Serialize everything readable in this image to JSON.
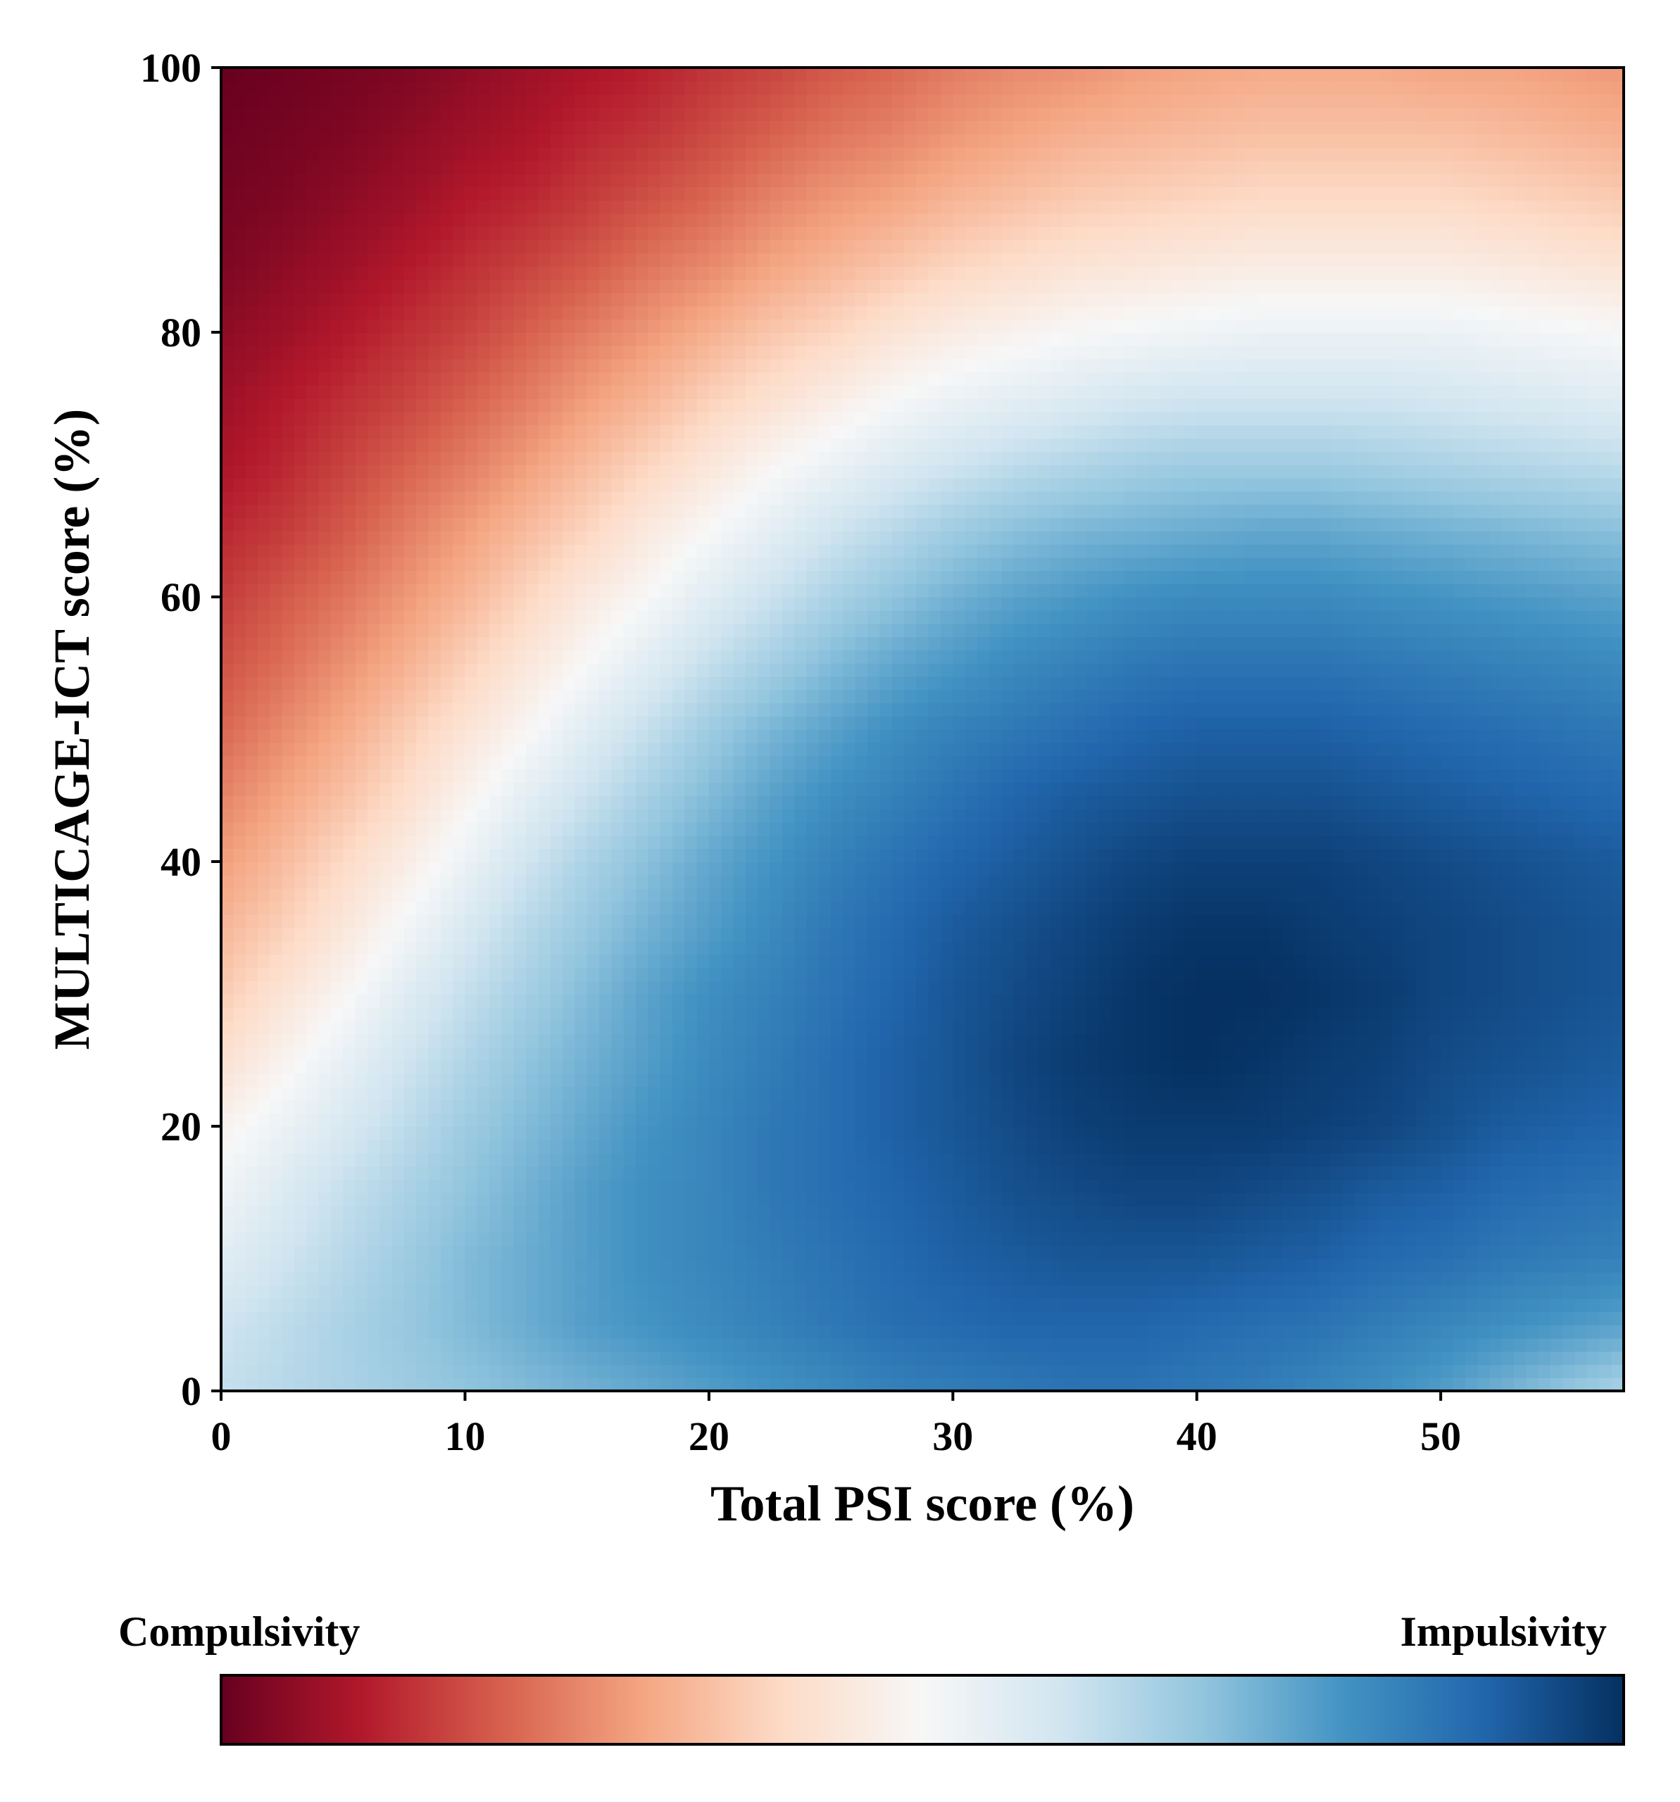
{
  "chart_data": {
    "type": "heatmap",
    "title": "",
    "xlabel": "Total PSI score (%)",
    "ylabel": "MULTICAGE-ICT score (%)",
    "xlim": [
      0,
      57.5
    ],
    "ylim": [
      0,
      100
    ],
    "xticks": [
      0,
      10,
      20,
      30,
      40,
      50
    ],
    "yticks": [
      0,
      20,
      40,
      60,
      80,
      100
    ],
    "colormap": "RdBu",
    "colorbar": {
      "orientation": "horizontal",
      "position": "bottom",
      "label_left": "Compulsivity",
      "label_right": "Impulsivity",
      "stops": [
        "#67001f",
        "#b2182b",
        "#d6604d",
        "#f4a582",
        "#fddbc7",
        "#f7f7f7",
        "#d1e5f0",
        "#92c5de",
        "#4393c3",
        "#2166ac",
        "#053061"
      ]
    },
    "value_range": [
      0,
      1
    ],
    "grid_resolution": [
      24,
      21
    ],
    "x_grid": [
      0,
      2.5,
      5,
      7.5,
      10,
      12.5,
      15,
      17.5,
      20,
      22.5,
      25,
      27.5,
      30,
      32.5,
      35,
      37.5,
      40,
      42.5,
      45,
      47.5,
      50,
      52.5,
      55,
      57.5
    ],
    "y_grid": [
      0,
      5,
      10,
      15,
      20,
      25,
      30,
      35,
      40,
      45,
      50,
      55,
      60,
      65,
      70,
      75,
      80,
      85,
      90,
      95,
      100
    ],
    "values_note": "rows ordered by y_grid (bottom to top); columns by x_grid",
    "values": [
      [
        0.62,
        0.64,
        0.66,
        0.68,
        0.7,
        0.72,
        0.74,
        0.76,
        0.78,
        0.8,
        0.82,
        0.84,
        0.85,
        0.86,
        0.87,
        0.87,
        0.86,
        0.85,
        0.83,
        0.81,
        0.78,
        0.74,
        0.7,
        0.66
      ],
      [
        0.6,
        0.63,
        0.66,
        0.69,
        0.72,
        0.75,
        0.78,
        0.8,
        0.82,
        0.84,
        0.86,
        0.88,
        0.89,
        0.9,
        0.9,
        0.9,
        0.89,
        0.88,
        0.87,
        0.85,
        0.83,
        0.81,
        0.79,
        0.77
      ],
      [
        0.56,
        0.6,
        0.64,
        0.68,
        0.72,
        0.75,
        0.78,
        0.81,
        0.83,
        0.85,
        0.87,
        0.89,
        0.91,
        0.92,
        0.93,
        0.93,
        0.93,
        0.92,
        0.91,
        0.89,
        0.88,
        0.86,
        0.85,
        0.84
      ],
      [
        0.52,
        0.57,
        0.62,
        0.66,
        0.7,
        0.74,
        0.78,
        0.81,
        0.83,
        0.86,
        0.88,
        0.9,
        0.92,
        0.94,
        0.95,
        0.96,
        0.96,
        0.95,
        0.94,
        0.92,
        0.91,
        0.89,
        0.88,
        0.87
      ],
      [
        0.48,
        0.53,
        0.58,
        0.63,
        0.68,
        0.72,
        0.76,
        0.8,
        0.83,
        0.86,
        0.88,
        0.91,
        0.93,
        0.95,
        0.97,
        0.98,
        0.98,
        0.98,
        0.97,
        0.96,
        0.94,
        0.92,
        0.91,
        0.9
      ],
      [
        0.42,
        0.48,
        0.54,
        0.6,
        0.65,
        0.7,
        0.74,
        0.78,
        0.82,
        0.85,
        0.88,
        0.91,
        0.93,
        0.96,
        0.98,
        0.99,
        1.0,
        0.99,
        0.98,
        0.97,
        0.95,
        0.94,
        0.93,
        0.92
      ],
      [
        0.37,
        0.43,
        0.49,
        0.56,
        0.62,
        0.67,
        0.72,
        0.77,
        0.81,
        0.84,
        0.87,
        0.9,
        0.93,
        0.95,
        0.97,
        0.99,
        1.0,
        1.0,
        0.99,
        0.98,
        0.96,
        0.95,
        0.94,
        0.93
      ],
      [
        0.33,
        0.38,
        0.44,
        0.51,
        0.58,
        0.64,
        0.69,
        0.74,
        0.78,
        0.82,
        0.86,
        0.89,
        0.92,
        0.94,
        0.96,
        0.98,
        0.99,
        0.99,
        0.98,
        0.97,
        0.96,
        0.95,
        0.94,
        0.93
      ],
      [
        0.29,
        0.34,
        0.4,
        0.46,
        0.53,
        0.6,
        0.66,
        0.71,
        0.76,
        0.8,
        0.84,
        0.87,
        0.9,
        0.92,
        0.94,
        0.96,
        0.97,
        0.97,
        0.97,
        0.96,
        0.95,
        0.94,
        0.93,
        0.92
      ],
      [
        0.25,
        0.3,
        0.35,
        0.41,
        0.48,
        0.55,
        0.61,
        0.67,
        0.72,
        0.77,
        0.81,
        0.84,
        0.87,
        0.9,
        0.92,
        0.93,
        0.94,
        0.94,
        0.94,
        0.93,
        0.92,
        0.91,
        0.9,
        0.89
      ],
      [
        0.21,
        0.26,
        0.31,
        0.37,
        0.43,
        0.49,
        0.56,
        0.62,
        0.68,
        0.73,
        0.77,
        0.81,
        0.84,
        0.86,
        0.88,
        0.9,
        0.91,
        0.91,
        0.91,
        0.9,
        0.89,
        0.88,
        0.87,
        0.86
      ],
      [
        0.18,
        0.22,
        0.27,
        0.32,
        0.38,
        0.44,
        0.5,
        0.56,
        0.62,
        0.67,
        0.72,
        0.76,
        0.79,
        0.82,
        0.84,
        0.86,
        0.87,
        0.87,
        0.87,
        0.86,
        0.85,
        0.84,
        0.83,
        0.82
      ],
      [
        0.15,
        0.19,
        0.23,
        0.28,
        0.33,
        0.39,
        0.45,
        0.5,
        0.56,
        0.61,
        0.66,
        0.7,
        0.74,
        0.77,
        0.79,
        0.81,
        0.82,
        0.82,
        0.82,
        0.81,
        0.8,
        0.79,
        0.78,
        0.77
      ],
      [
        0.12,
        0.15,
        0.19,
        0.24,
        0.29,
        0.34,
        0.39,
        0.45,
        0.5,
        0.55,
        0.6,
        0.64,
        0.68,
        0.71,
        0.73,
        0.74,
        0.75,
        0.76,
        0.76,
        0.75,
        0.74,
        0.73,
        0.72,
        0.71
      ],
      [
        0.09,
        0.12,
        0.16,
        0.2,
        0.24,
        0.29,
        0.34,
        0.39,
        0.44,
        0.49,
        0.53,
        0.57,
        0.6,
        0.63,
        0.65,
        0.67,
        0.68,
        0.68,
        0.68,
        0.67,
        0.66,
        0.65,
        0.64,
        0.63
      ],
      [
        0.07,
        0.1,
        0.13,
        0.16,
        0.2,
        0.24,
        0.29,
        0.33,
        0.38,
        0.42,
        0.46,
        0.5,
        0.53,
        0.55,
        0.57,
        0.59,
        0.6,
        0.6,
        0.6,
        0.6,
        0.59,
        0.58,
        0.57,
        0.56
      ],
      [
        0.05,
        0.07,
        0.1,
        0.13,
        0.16,
        0.2,
        0.24,
        0.28,
        0.32,
        0.36,
        0.39,
        0.43,
        0.46,
        0.48,
        0.5,
        0.51,
        0.52,
        0.53,
        0.53,
        0.53,
        0.53,
        0.52,
        0.51,
        0.5
      ],
      [
        0.03,
        0.05,
        0.07,
        0.1,
        0.13,
        0.16,
        0.19,
        0.23,
        0.26,
        0.3,
        0.33,
        0.36,
        0.39,
        0.41,
        0.43,
        0.44,
        0.45,
        0.46,
        0.46,
        0.46,
        0.46,
        0.45,
        0.44,
        0.43
      ],
      [
        0.02,
        0.03,
        0.05,
        0.07,
        0.1,
        0.12,
        0.15,
        0.18,
        0.21,
        0.25,
        0.28,
        0.3,
        0.33,
        0.35,
        0.37,
        0.38,
        0.39,
        0.4,
        0.4,
        0.4,
        0.4,
        0.39,
        0.38,
        0.37
      ],
      [
        0.01,
        0.02,
        0.03,
        0.05,
        0.07,
        0.09,
        0.12,
        0.14,
        0.17,
        0.2,
        0.23,
        0.25,
        0.28,
        0.3,
        0.32,
        0.33,
        0.34,
        0.35,
        0.35,
        0.35,
        0.35,
        0.34,
        0.33,
        0.32
      ],
      [
        0.0,
        0.01,
        0.02,
        0.03,
        0.05,
        0.07,
        0.09,
        0.11,
        0.14,
        0.16,
        0.19,
        0.21,
        0.24,
        0.26,
        0.27,
        0.29,
        0.3,
        0.31,
        0.31,
        0.31,
        0.3,
        0.3,
        0.29,
        0.28
      ]
    ]
  }
}
